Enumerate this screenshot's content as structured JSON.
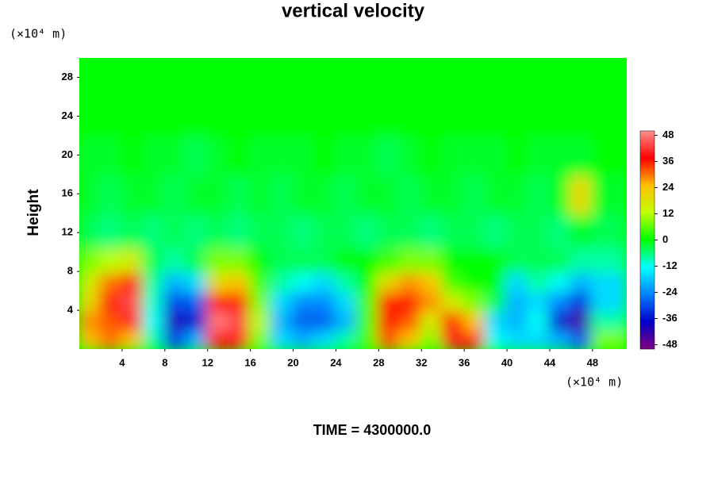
{
  "chart_data": {
    "type": "contour",
    "title": "vertical velocity",
    "ylabel": "Height",
    "yunit": "(×10⁴ m)",
    "xunit": "(×10⁴ m)",
    "time_label": "TIME = 4300000.0",
    "xlim": [
      0,
      51.2
    ],
    "ylim": [
      0,
      30
    ],
    "xticks": [
      4,
      8,
      12,
      16,
      20,
      24,
      28,
      32,
      36,
      40,
      44,
      48
    ],
    "yticks": [
      4,
      8,
      12,
      16,
      20,
      24,
      28
    ],
    "zlim": [
      -50,
      50
    ],
    "zticks": [
      -48,
      -36,
      -24,
      -12,
      0,
      12,
      24,
      36,
      48
    ],
    "colormap": [
      "#800080",
      "#0000c8",
      "#0080ff",
      "#00ffff",
      "#00ff00",
      "#c0ff00",
      "#ffc000",
      "#ff0000",
      "#ff9090"
    ],
    "x": [
      1,
      3,
      5,
      7,
      9,
      11,
      13,
      15,
      17,
      19,
      21,
      23,
      25,
      27,
      29,
      31,
      33,
      35,
      37,
      39,
      41,
      43,
      45,
      47,
      49
    ],
    "y": [
      1,
      3,
      5,
      7,
      9,
      12,
      16,
      20,
      24,
      28
    ],
    "z": [
      [
        24,
        30,
        24,
        -8,
        -30,
        -20,
        36,
        40,
        8,
        -16,
        -20,
        -16,
        -8,
        4,
        32,
        24,
        8,
        40,
        36,
        -12,
        -16,
        -16,
        -20,
        -28,
        8
      ],
      [
        28,
        32,
        40,
        -12,
        -40,
        -36,
        48,
        44,
        12,
        -20,
        -28,
        -28,
        -20,
        4,
        36,
        32,
        16,
        36,
        24,
        -16,
        -20,
        -12,
        -36,
        -44,
        -8
      ],
      [
        20,
        36,
        44,
        -10,
        -30,
        -28,
        36,
        36,
        8,
        -16,
        -24,
        -24,
        -16,
        4,
        36,
        36,
        28,
        16,
        8,
        -4,
        -20,
        -16,
        -24,
        -32,
        -16
      ],
      [
        16,
        30,
        36,
        -8,
        -20,
        -16,
        20,
        24,
        4,
        -8,
        -12,
        -16,
        -8,
        0,
        20,
        28,
        24,
        4,
        0,
        0,
        -16,
        -8,
        -12,
        -20,
        -16
      ],
      [
        8,
        12,
        16,
        -4,
        -8,
        -4,
        8,
        8,
        0,
        -4,
        -4,
        -4,
        0,
        0,
        4,
        8,
        8,
        0,
        0,
        0,
        -4,
        -4,
        -4,
        -8,
        -8
      ],
      [
        -4,
        -6,
        -4,
        -6,
        -4,
        -6,
        -4,
        -6,
        -4,
        -4,
        -6,
        -4,
        -4,
        -6,
        -4,
        -4,
        -6,
        -4,
        -4,
        -6,
        -4,
        -4,
        -6,
        -2,
        -4
      ],
      [
        -2,
        -4,
        -2,
        -2,
        -4,
        -2,
        -2,
        -4,
        -2,
        -4,
        -2,
        -2,
        -4,
        -2,
        -2,
        -4,
        -2,
        -2,
        -4,
        -2,
        -2,
        -4,
        -2,
        20,
        -2
      ],
      [
        -2,
        -2,
        0,
        -2,
        -2,
        -4,
        -2,
        0,
        -2,
        -2,
        -2,
        0,
        -2,
        -2,
        -4,
        -2,
        0,
        -2,
        -2,
        -2,
        0,
        -2,
        -2,
        -2,
        0
      ],
      [
        0,
        0,
        0,
        0,
        0,
        0,
        0,
        0,
        0,
        0,
        0,
        0,
        0,
        0,
        0,
        0,
        0,
        0,
        0,
        0,
        0,
        0,
        0,
        0,
        0
      ],
      [
        0,
        0,
        0,
        0,
        0,
        0,
        0,
        0,
        0,
        0,
        0,
        0,
        0,
        0,
        0,
        0,
        0,
        0,
        0,
        0,
        0,
        0,
        0,
        0,
        0
      ]
    ]
  }
}
